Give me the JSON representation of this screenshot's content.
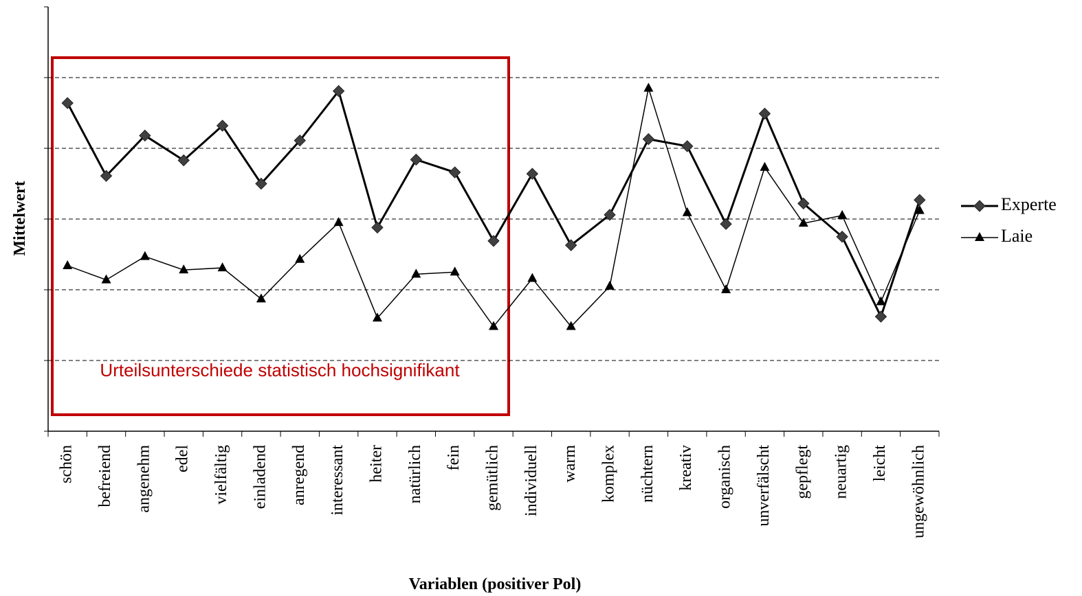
{
  "chart_data": {
    "type": "line",
    "x_label": "Variablen (positiver Pol)",
    "y_label": "Mittelwert",
    "annotation": "Urteilsunterschiede statistisch hochsignifikant",
    "categories": [
      "schön",
      "befreiend",
      "angenehm",
      "edel",
      "vielfältig",
      "einladend",
      "anregend",
      "interessant",
      "heiter",
      "natürlich",
      "fein",
      "gemütlich",
      "individuell",
      "warm",
      "komplex",
      "nüchtern",
      "kreativ",
      "organisch",
      "unverfälscht",
      "gepflegt",
      "neuartig",
      "leicht",
      "ungewöhnlich"
    ],
    "series": [
      {
        "name": "Experte",
        "color": "#000000",
        "marker": "diamond",
        "values": [
          4.64,
          3.61,
          4.18,
          3.83,
          4.32,
          3.5,
          4.11,
          4.81,
          2.88,
          3.84,
          3.66,
          2.69,
          3.64,
          2.63,
          3.06,
          4.13,
          4.03,
          2.93,
          4.49,
          3.22,
          2.75,
          1.62,
          3.27
        ]
      },
      {
        "name": "Laie",
        "color": "#000000",
        "marker": "triangle",
        "values": [
          2.34,
          2.14,
          2.47,
          2.28,
          2.31,
          1.87,
          2.43,
          2.95,
          1.6,
          2.22,
          2.25,
          1.48,
          2.16,
          1.48,
          2.05,
          4.85,
          3.09,
          2.0,
          3.73,
          2.94,
          3.05,
          1.83,
          3.12
        ]
      }
    ],
    "ylim": [
      0,
      6
    ],
    "yticks": [
      0,
      1,
      2,
      3,
      4,
      5,
      6
    ],
    "grid": true,
    "legend": "right"
  }
}
